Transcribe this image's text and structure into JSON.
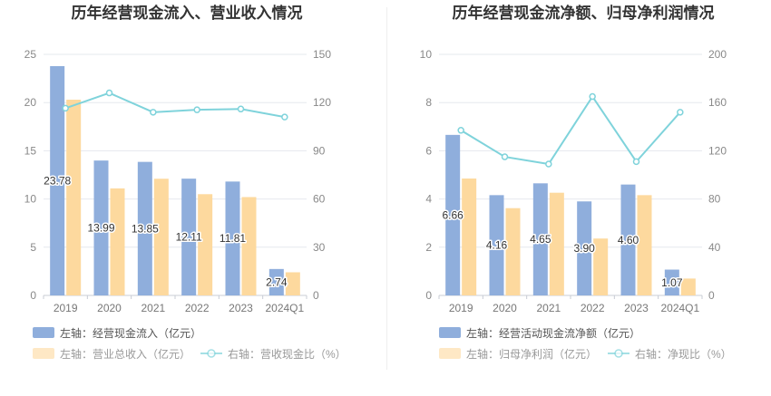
{
  "colors": {
    "bar_primary": "#8FAEDC",
    "bar_secondary": "#FDD99E",
    "line": "#7FD3DB",
    "grid": "#E6E8EE",
    "axis": "#C8CCD4"
  },
  "chart_data": [
    {
      "type": "bar",
      "title": "历年经营现金流入、营业收入情况",
      "categories": [
        "2019",
        "2020",
        "2021",
        "2022",
        "2023",
        "2024Q1"
      ],
      "series": [
        {
          "name": "左轴：经营现金流入（亿元）",
          "axis": "left",
          "kind": "bar",
          "role": "primary",
          "values": [
            23.78,
            13.99,
            13.85,
            12.11,
            11.81,
            2.74
          ],
          "show_labels": true
        },
        {
          "name": "左轴：营业总收入（亿元）",
          "axis": "left",
          "kind": "bar",
          "role": "secondary",
          "values": [
            20.3,
            11.1,
            12.1,
            10.5,
            10.2,
            2.4
          ],
          "show_labels": false
        },
        {
          "name": "右轴：营收现金比（%）",
          "axis": "right",
          "kind": "line",
          "values": [
            116.5,
            126.0,
            114.0,
            115.5,
            116.0,
            111.0
          ],
          "show_labels": false
        }
      ],
      "left_axis": {
        "min": 0,
        "max": 25,
        "ticks": [
          "0",
          "5",
          "10",
          "15",
          "20",
          "25"
        ]
      },
      "right_axis": {
        "min": 0,
        "max": 150,
        "ticks": [
          "0",
          "30",
          "60",
          "90",
          "120",
          "150"
        ]
      },
      "value_labels": [
        "23.78",
        "13.99",
        "13.85",
        "12.11",
        "11.81",
        "2.74"
      ]
    },
    {
      "type": "bar",
      "title": "历年经营现金流净额、归母净利润情况",
      "categories": [
        "2019",
        "2020",
        "2021",
        "2022",
        "2023",
        "2024Q1"
      ],
      "series": [
        {
          "name": "左轴：经营活动现金流净额（亿元）",
          "axis": "left",
          "kind": "bar",
          "role": "primary",
          "values": [
            6.66,
            4.16,
            4.65,
            3.9,
            4.6,
            1.07
          ],
          "show_labels": true
        },
        {
          "name": "左轴：归母净利润（亿元）",
          "axis": "left",
          "kind": "bar",
          "role": "secondary",
          "values": [
            4.85,
            3.62,
            4.26,
            2.36,
            4.16,
            0.7
          ],
          "show_labels": false
        },
        {
          "name": "右轴：净现比（%）",
          "axis": "right",
          "kind": "line",
          "values": [
            137,
            115,
            109,
            165,
            111,
            152
          ],
          "show_labels": false
        }
      ],
      "left_axis": {
        "min": 0,
        "max": 10,
        "ticks": [
          "0",
          "2",
          "4",
          "6",
          "8",
          "10"
        ]
      },
      "right_axis": {
        "min": 0,
        "max": 200,
        "ticks": [
          "0",
          "40",
          "80",
          "120",
          "160",
          "200"
        ]
      },
      "value_labels": [
        "6.66",
        "4.16",
        "4.65",
        "3.90",
        "4.60",
        "1.07"
      ]
    }
  ]
}
